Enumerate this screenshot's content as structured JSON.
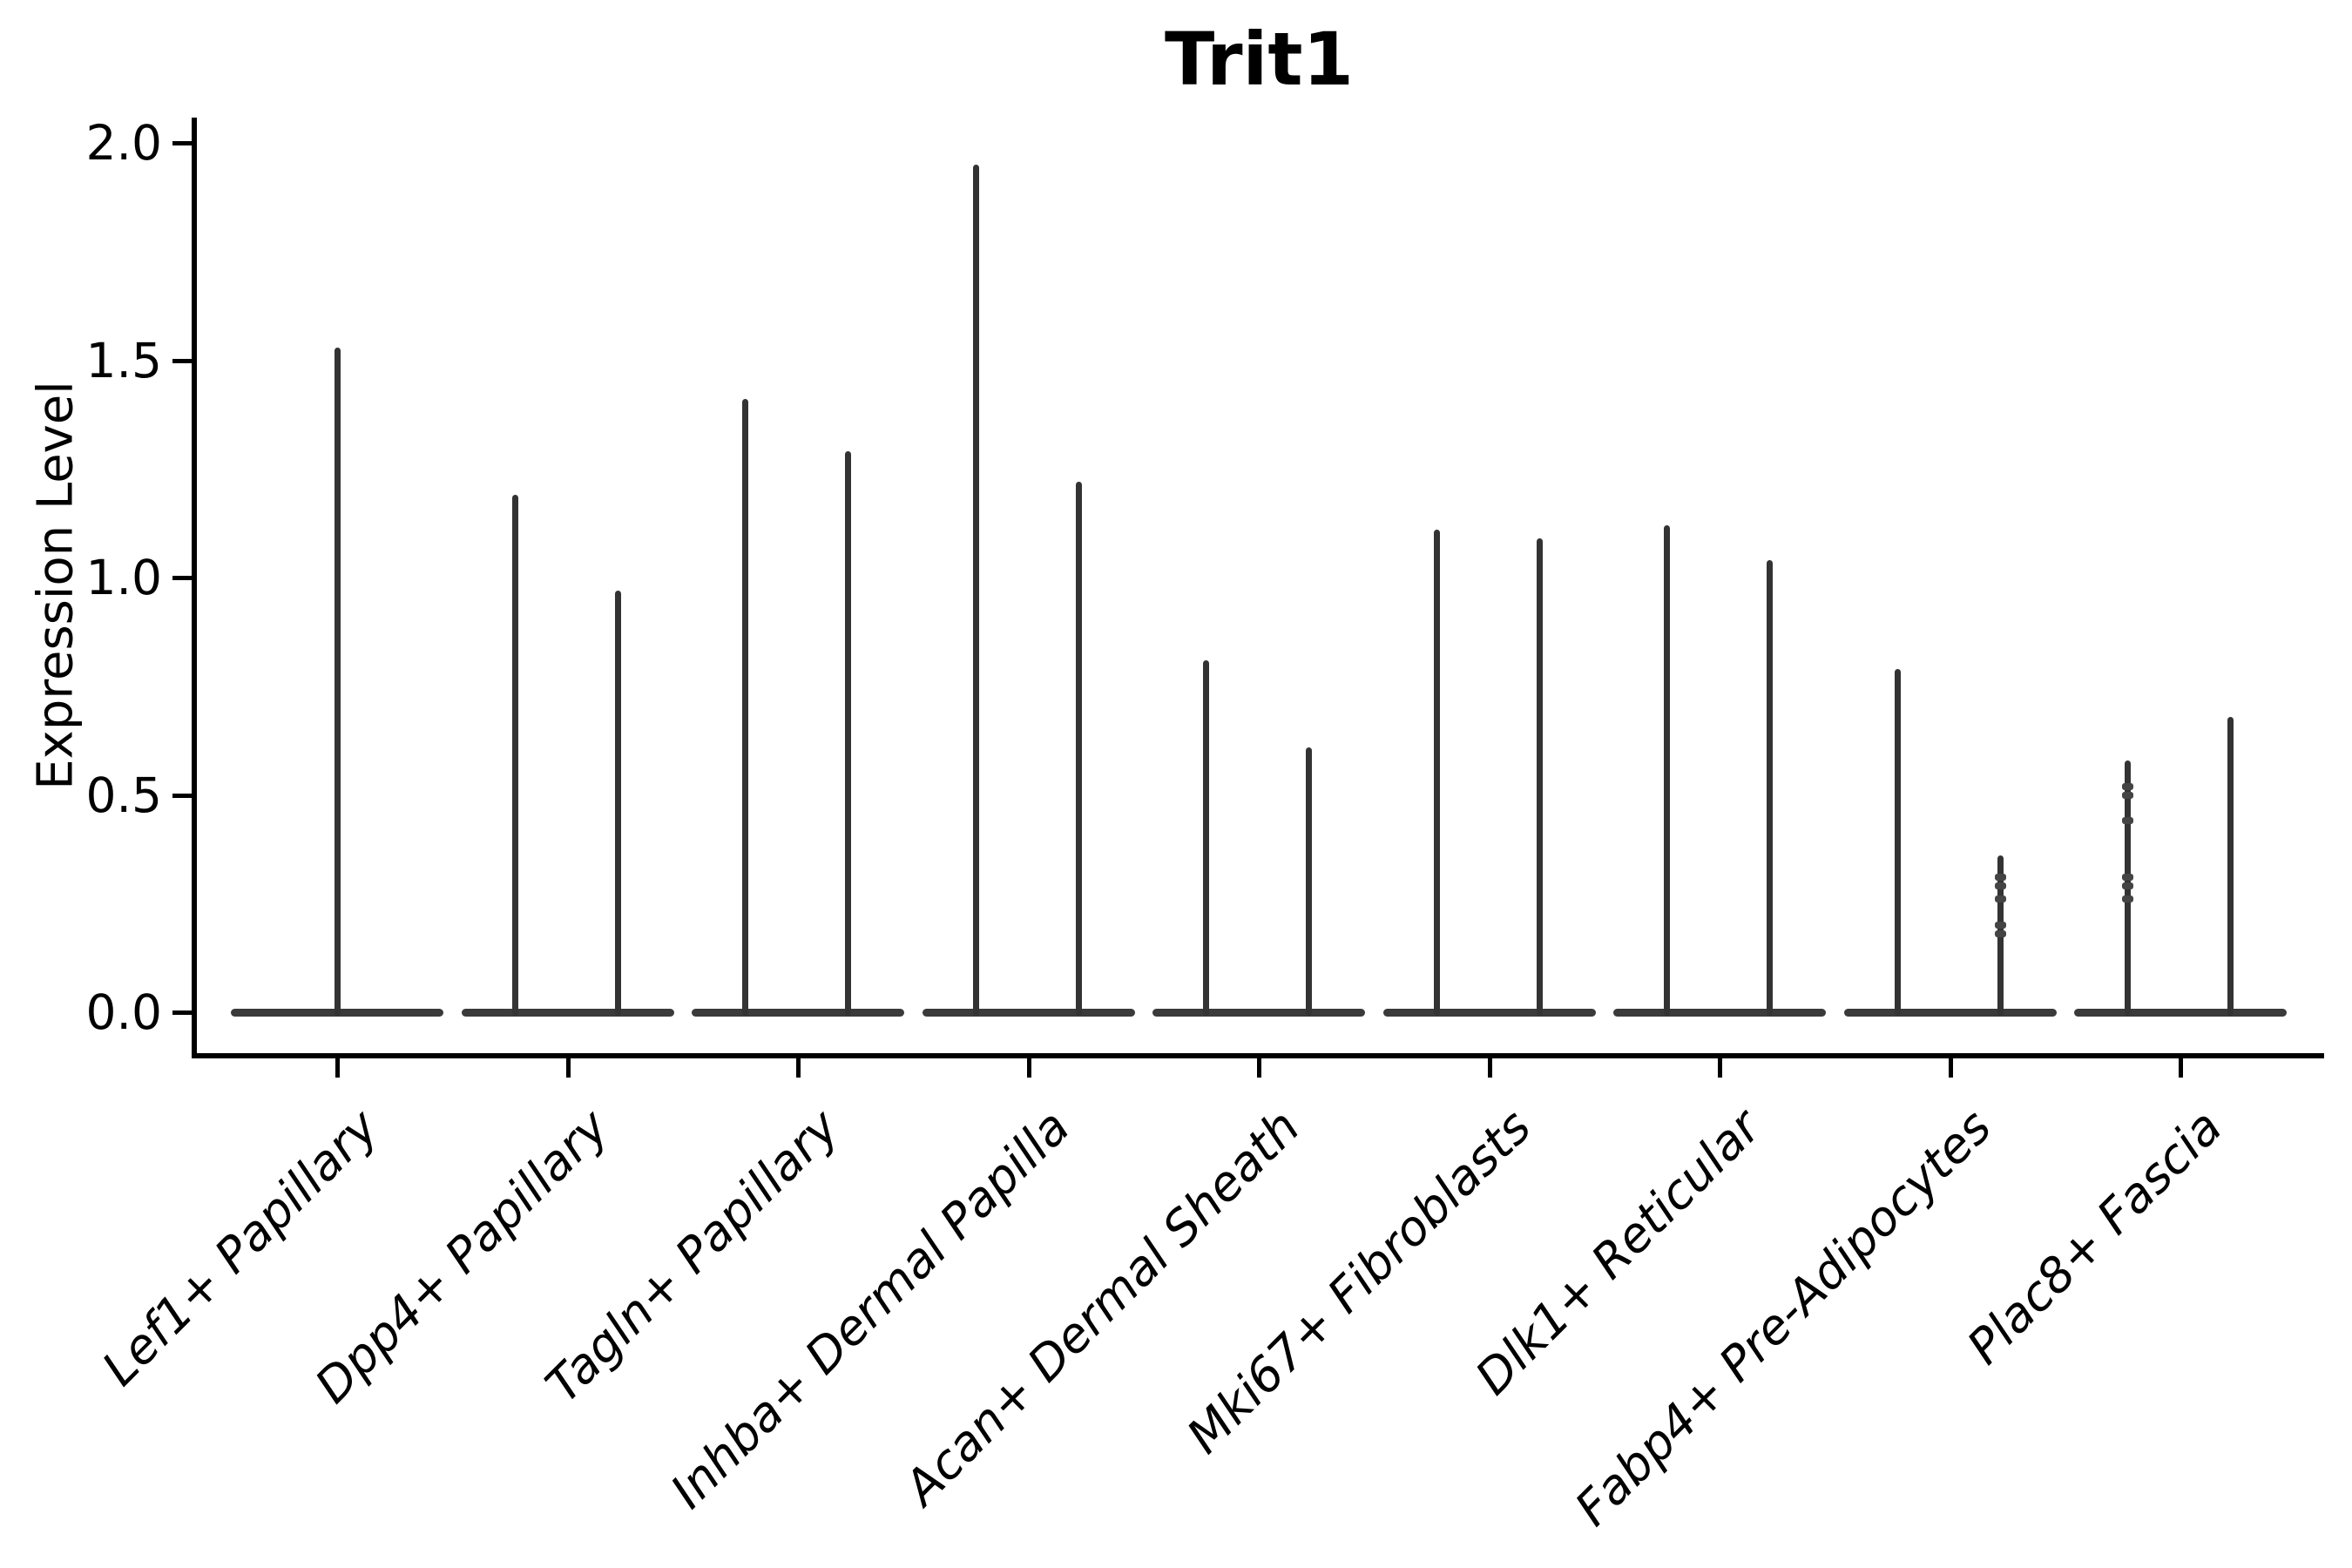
{
  "title": "Trit1",
  "y_axis": {
    "label": "Expression Level",
    "tick_labels": [
      "0.0",
      "0.5",
      "1.0",
      "1.5",
      "2.0"
    ]
  },
  "chart_data": {
    "type": "violin",
    "title": "Trit1",
    "xlabel": "",
    "ylabel": "Expression Level",
    "ylim": [
      0,
      2.05
    ],
    "yticks": [
      0.0,
      0.5,
      1.0,
      1.5,
      2.0
    ],
    "grid": false,
    "legend_position": "none",
    "style": "thin spike violins with wide flat base at 0; two dodged violins per category except first",
    "colors": {
      "violin": "#333333",
      "axis": "#000000",
      "background": "#ffffff"
    },
    "categories": [
      "Lef1+ Papillary",
      "Dpp4+ Papillary",
      "Tagln+ Papillary",
      "Inhba+ Dermal Papilla",
      "Acan+ Dermal Sheath",
      "Mki67+ Fibroblasts",
      "Dlk1+ Reticular",
      "Fabp4+ Pre-Adipocytes",
      "Plac8+ Fascia"
    ],
    "violins": [
      {
        "category": "Lef1+ Papillary",
        "spikes": [
          {
            "pos": "center",
            "max": 1.53,
            "dots": []
          }
        ]
      },
      {
        "category": "Dpp4+ Papillary",
        "spikes": [
          {
            "pos": "left",
            "max": 1.19,
            "dots": []
          },
          {
            "pos": "right",
            "max": 0.97,
            "dots": []
          }
        ]
      },
      {
        "category": "Tagln+ Papillary",
        "spikes": [
          {
            "pos": "left",
            "max": 1.41,
            "dots": []
          },
          {
            "pos": "right",
            "max": 1.29,
            "dots": []
          }
        ]
      },
      {
        "category": "Inhba+ Dermal Papilla",
        "spikes": [
          {
            "pos": "left",
            "max": 1.95,
            "dots": []
          },
          {
            "pos": "right",
            "max": 1.22,
            "dots": []
          }
        ]
      },
      {
        "category": "Acan+ Dermal Sheath",
        "spikes": [
          {
            "pos": "left",
            "max": 0.81,
            "dots": []
          },
          {
            "pos": "right",
            "max": 0.61,
            "dots": []
          }
        ]
      },
      {
        "category": "Mki67+ Fibroblasts",
        "spikes": [
          {
            "pos": "left",
            "max": 1.11,
            "dots": []
          },
          {
            "pos": "right",
            "max": 1.09,
            "dots": []
          }
        ]
      },
      {
        "category": "Dlk1+ Reticular",
        "spikes": [
          {
            "pos": "left",
            "max": 1.12,
            "dots": []
          },
          {
            "pos": "right",
            "max": 1.04,
            "dots": []
          }
        ]
      },
      {
        "category": "Fabp4+ Pre-Adipocytes",
        "spikes": [
          {
            "pos": "left",
            "max": 0.79,
            "dots": []
          },
          {
            "pos": "right",
            "max": 0.36,
            "dots": [
              0.31,
              0.29,
              0.26,
              0.2,
              0.18
            ]
          }
        ]
      },
      {
        "category": "Plac8+ Fascia",
        "spikes": [
          {
            "pos": "left",
            "max": 0.58,
            "dots": [
              0.52,
              0.5,
              0.44,
              0.31,
              0.29,
              0.26
            ]
          },
          {
            "pos": "right",
            "max": 0.68,
            "dots": []
          }
        ]
      }
    ]
  }
}
